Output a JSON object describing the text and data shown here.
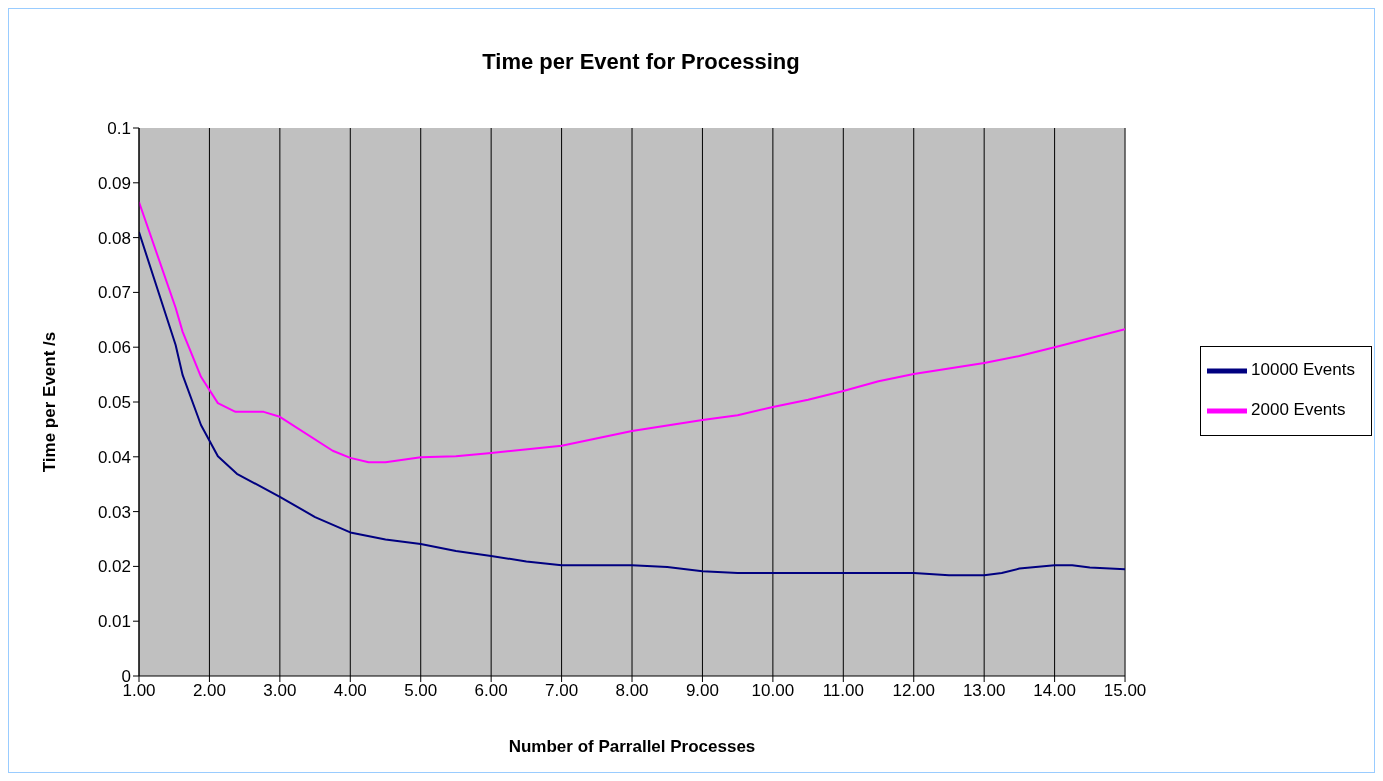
{
  "chart_data": {
    "type": "line",
    "title": "Time per Event for Processing",
    "xlabel": "Number of Parrallel Processes",
    "ylabel": "Time per Event /s",
    "xlim": [
      1,
      15
    ],
    "xticks": [
      {
        "value": 1,
        "label": "1.00"
      },
      {
        "value": 2,
        "label": "2.00"
      },
      {
        "value": 3,
        "label": "3.00"
      },
      {
        "value": 4,
        "label": "4.00"
      },
      {
        "value": 5,
        "label": "5.00"
      },
      {
        "value": 6,
        "label": "6.00"
      },
      {
        "value": 7,
        "label": "7.00"
      },
      {
        "value": 8,
        "label": "8.00"
      },
      {
        "value": 9,
        "label": "9.00"
      },
      {
        "value": 10,
        "label": "10.00"
      },
      {
        "value": 11,
        "label": "11.00"
      },
      {
        "value": 12,
        "label": "12.00"
      },
      {
        "value": 13,
        "label": "13.00"
      },
      {
        "value": 14,
        "label": "14.00"
      },
      {
        "value": 15,
        "label": "15.00"
      }
    ],
    "ylim": [
      0,
      0.1
    ],
    "yticks": [
      0,
      0.01,
      0.02,
      0.03,
      0.04,
      0.05,
      0.06,
      0.07,
      0.08,
      0.09,
      0.1
    ],
    "grid": "x",
    "legend": "right",
    "line_style": "solid",
    "series": [
      {
        "name": "10000 Events",
        "color": "#000080",
        "x": [
          1,
          1.52,
          1.62,
          1.88,
          2.12,
          2.39,
          3,
          3.5,
          4,
          4.5,
          5,
          5.5,
          6,
          6.5,
          7,
          8,
          8.5,
          9,
          9.5,
          10,
          11,
          12,
          12.5,
          13,
          13.25,
          13.5,
          14,
          14.25,
          14.5,
          15
        ],
        "values": [
          0.081,
          0.0604,
          0.0549,
          0.0458,
          0.0401,
          0.0369,
          0.0327,
          0.029,
          0.0262,
          0.0249,
          0.0241,
          0.0228,
          0.0219,
          0.0209,
          0.0202,
          0.0202,
          0.0199,
          0.0191,
          0.0188,
          0.0188,
          0.0188,
          0.0188,
          0.0184,
          0.0184,
          0.0188,
          0.0196,
          0.0202,
          0.0202,
          0.0198,
          0.0195
        ]
      },
      {
        "name": "2000 Events",
        "color": "#ff00ff",
        "x": [
          1,
          1.52,
          1.62,
          1.88,
          2.12,
          2.37,
          2.77,
          3,
          3.75,
          4,
          4.26,
          4.5,
          5,
          5.5,
          6,
          7,
          8,
          9,
          9.5,
          10,
          10.5,
          11,
          11.5,
          12,
          13,
          13.5,
          14,
          15
        ],
        "values": [
          0.0865,
          0.0672,
          0.0628,
          0.0546,
          0.0498,
          0.0482,
          0.0482,
          0.0473,
          0.0411,
          0.0398,
          0.039,
          0.039,
          0.0399,
          0.0401,
          0.0407,
          0.042,
          0.0447,
          0.0467,
          0.0476,
          0.0491,
          0.0504,
          0.052,
          0.0538,
          0.0551,
          0.0571,
          0.0584,
          0.06,
          0.0633
        ]
      }
    ]
  }
}
